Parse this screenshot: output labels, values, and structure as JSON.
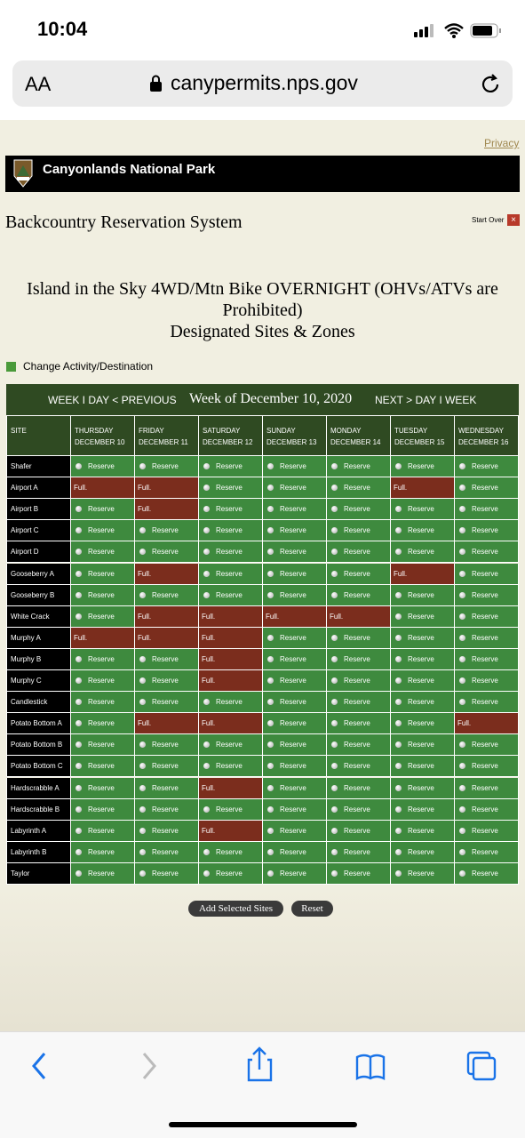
{
  "status_bar": {
    "time": "10:04"
  },
  "browser": {
    "text_size": "AA",
    "url": "canypermits.nps.gov"
  },
  "privacy": "Privacy",
  "banner": {
    "title": "Canyonlands National Park"
  },
  "system_title": "Backcountry Reservation System",
  "start_over": "Start Over",
  "heading": {
    "line1": "Island in the Sky 4WD/Mtn Bike OVERNIGHT (OHVs/ATVs are Prohibited)",
    "line2": "Designated Sites & Zones"
  },
  "change_activity": "Change Activity/Destination",
  "nav": {
    "previous": "WEEK I DAY < PREVIOUS",
    "week_of": "Week of December 10, 2020",
    "next": "NEXT > DAY I WEEK"
  },
  "table": {
    "site_header": "SITE",
    "days": [
      {
        "day": "THURSDAY",
        "date": "DECEMBER 10"
      },
      {
        "day": "FRIDAY",
        "date": "DECEMBER 11"
      },
      {
        "day": "SATURDAY",
        "date": "DECEMBER 12"
      },
      {
        "day": "SUNDAY",
        "date": "DECEMBER 13"
      },
      {
        "day": "MONDAY",
        "date": "DECEMBER 14"
      },
      {
        "day": "TUESDAY",
        "date": "DECEMBER 15"
      },
      {
        "day": "WEDNESDAY",
        "date": "DECEMBER 16"
      }
    ],
    "rows": [
      {
        "site": "Shafer",
        "cells": [
          "Reserve",
          "Reserve",
          "Reserve",
          "Reserve",
          "Reserve",
          "Reserve",
          "Reserve"
        ]
      },
      {
        "site": "Airport A",
        "cells": [
          "Full.",
          "Full.",
          "Reserve",
          "Reserve",
          "Reserve",
          "Full.",
          "Reserve"
        ]
      },
      {
        "site": "Airport B",
        "cells": [
          "Reserve",
          "Full.",
          "Reserve",
          "Reserve",
          "Reserve",
          "Reserve",
          "Reserve"
        ]
      },
      {
        "site": "Airport C",
        "cells": [
          "Reserve",
          "Reserve",
          "Reserve",
          "Reserve",
          "Reserve",
          "Reserve",
          "Reserve"
        ]
      },
      {
        "site": "Airport D",
        "cells": [
          "Reserve",
          "Reserve",
          "Reserve",
          "Reserve",
          "Reserve",
          "Reserve",
          "Reserve"
        ]
      },
      {
        "site": "Gooseberry A",
        "cells": [
          "Reserve",
          "Full.",
          "Reserve",
          "Reserve",
          "Reserve",
          "Full.",
          "Reserve"
        ]
      },
      {
        "site": "Gooseberry B",
        "cells": [
          "Reserve",
          "Reserve",
          "Reserve",
          "Reserve",
          "Reserve",
          "Reserve",
          "Reserve"
        ]
      },
      {
        "site": "White Crack",
        "cells": [
          "Reserve",
          "Full.",
          "Full.",
          "Full.",
          "Full.",
          "Reserve",
          "Reserve"
        ]
      },
      {
        "site": "Murphy A",
        "cells": [
          "Full.",
          "Full.",
          "Full.",
          "Reserve",
          "Reserve",
          "Reserve",
          "Reserve"
        ]
      },
      {
        "site": "Murphy B",
        "cells": [
          "Reserve",
          "Reserve",
          "Full.",
          "Reserve",
          "Reserve",
          "Reserve",
          "Reserve"
        ]
      },
      {
        "site": "Murphy C",
        "cells": [
          "Reserve",
          "Reserve",
          "Full.",
          "Reserve",
          "Reserve",
          "Reserve",
          "Reserve"
        ]
      },
      {
        "site": "Candlestick",
        "cells": [
          "Reserve",
          "Reserve",
          "Reserve",
          "Reserve",
          "Reserve",
          "Reserve",
          "Reserve"
        ]
      },
      {
        "site": "Potato Bottom A",
        "cells": [
          "Reserve",
          "Full.",
          "Full.",
          "Reserve",
          "Reserve",
          "Reserve",
          "Full."
        ]
      },
      {
        "site": "Potato Bottom B",
        "cells": [
          "Reserve",
          "Reserve",
          "Reserve",
          "Reserve",
          "Reserve",
          "Reserve",
          "Reserve"
        ]
      },
      {
        "site": "Potato Bottom C",
        "cells": [
          "Reserve",
          "Reserve",
          "Reserve",
          "Reserve",
          "Reserve",
          "Reserve",
          "Reserve"
        ]
      },
      {
        "site": "Hardscrabble A",
        "cells": [
          "Reserve",
          "Reserve",
          "Full.",
          "Reserve",
          "Reserve",
          "Reserve",
          "Reserve"
        ]
      },
      {
        "site": "Hardscrabble B",
        "cells": [
          "Reserve",
          "Reserve",
          "Reserve",
          "Reserve",
          "Reserve",
          "Reserve",
          "Reserve"
        ]
      },
      {
        "site": "Labyrinth A",
        "cells": [
          "Reserve",
          "Reserve",
          "Full.",
          "Reserve",
          "Reserve",
          "Reserve",
          "Reserve"
        ]
      },
      {
        "site": "Labyrinth B",
        "cells": [
          "Reserve",
          "Reserve",
          "Reserve",
          "Reserve",
          "Reserve",
          "Reserve",
          "Reserve"
        ]
      },
      {
        "site": "Taylor",
        "cells": [
          "Reserve",
          "Reserve",
          "Reserve",
          "Reserve",
          "Reserve",
          "Reserve",
          "Reserve"
        ]
      }
    ]
  },
  "buttons": {
    "add": "Add Selected Sites",
    "reset": "Reset"
  }
}
